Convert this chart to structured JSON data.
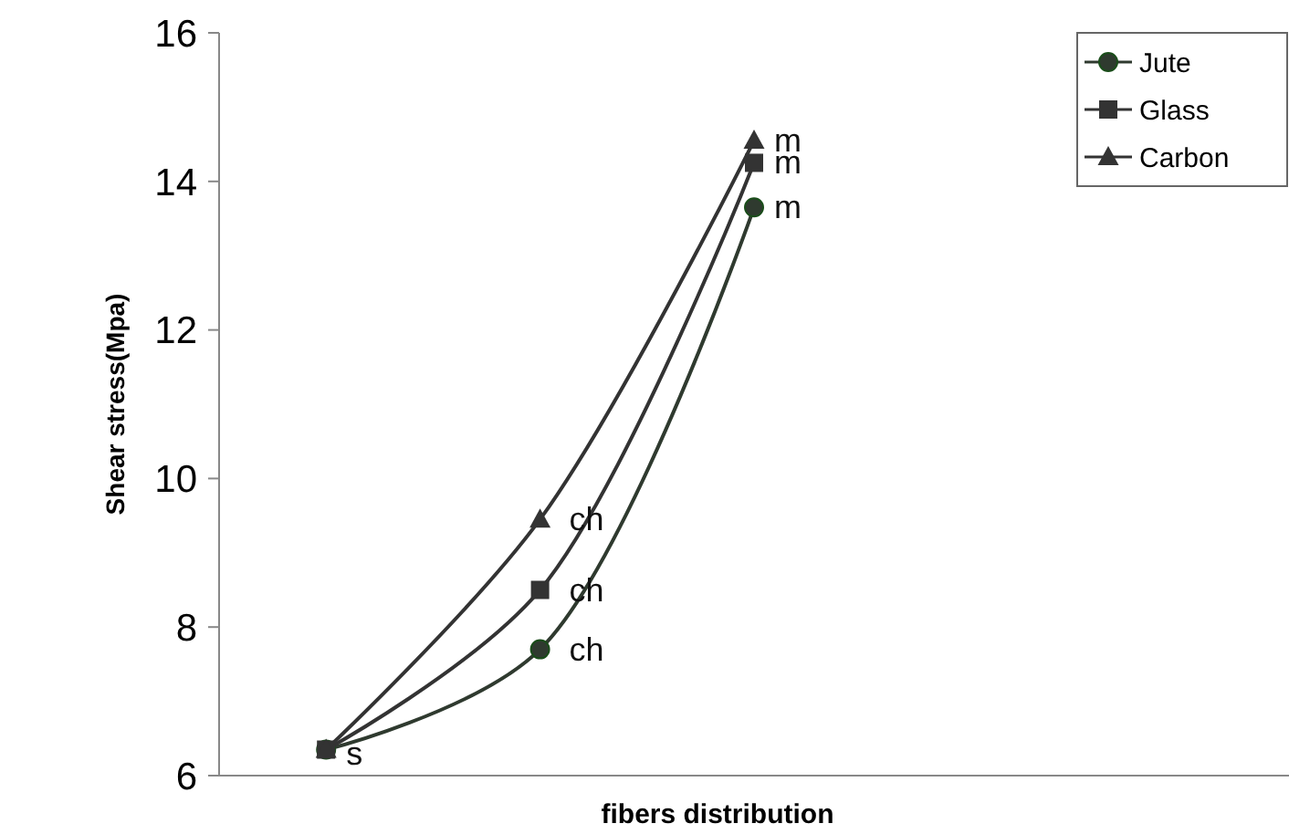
{
  "chart_data": {
    "type": "line",
    "xlabel": "fibers distribution",
    "ylabel": "Shear stress(Mpa)",
    "categories": [
      null,
      null,
      null,
      null,
      null
    ],
    "ylim": [
      6,
      16
    ],
    "yticks": [
      6,
      8,
      10,
      12,
      14,
      16
    ],
    "legend": "top right",
    "grid": false,
    "line_style": "solid",
    "series": [
      {
        "name": "Jute",
        "color": "#2f3a2f",
        "marker": "circle",
        "values": [
          6.35,
          7.7,
          13.65,
          null,
          null
        ],
        "value_labels": [
          null,
          "ch",
          "m",
          null,
          null
        ]
      },
      {
        "name": "Glass",
        "color": "#333333",
        "marker": "square",
        "values": [
          6.35,
          8.5,
          14.25,
          null,
          null
        ],
        "value_labels": [
          null,
          "ch",
          "m",
          null,
          null
        ]
      },
      {
        "name": "Carbon",
        "color": "#333333",
        "marker": "triangle",
        "values": [
          6.35,
          9.45,
          14.55,
          null,
          null
        ],
        "value_labels": [
          "s",
          "ch",
          "m",
          null,
          null
        ]
      }
    ]
  }
}
